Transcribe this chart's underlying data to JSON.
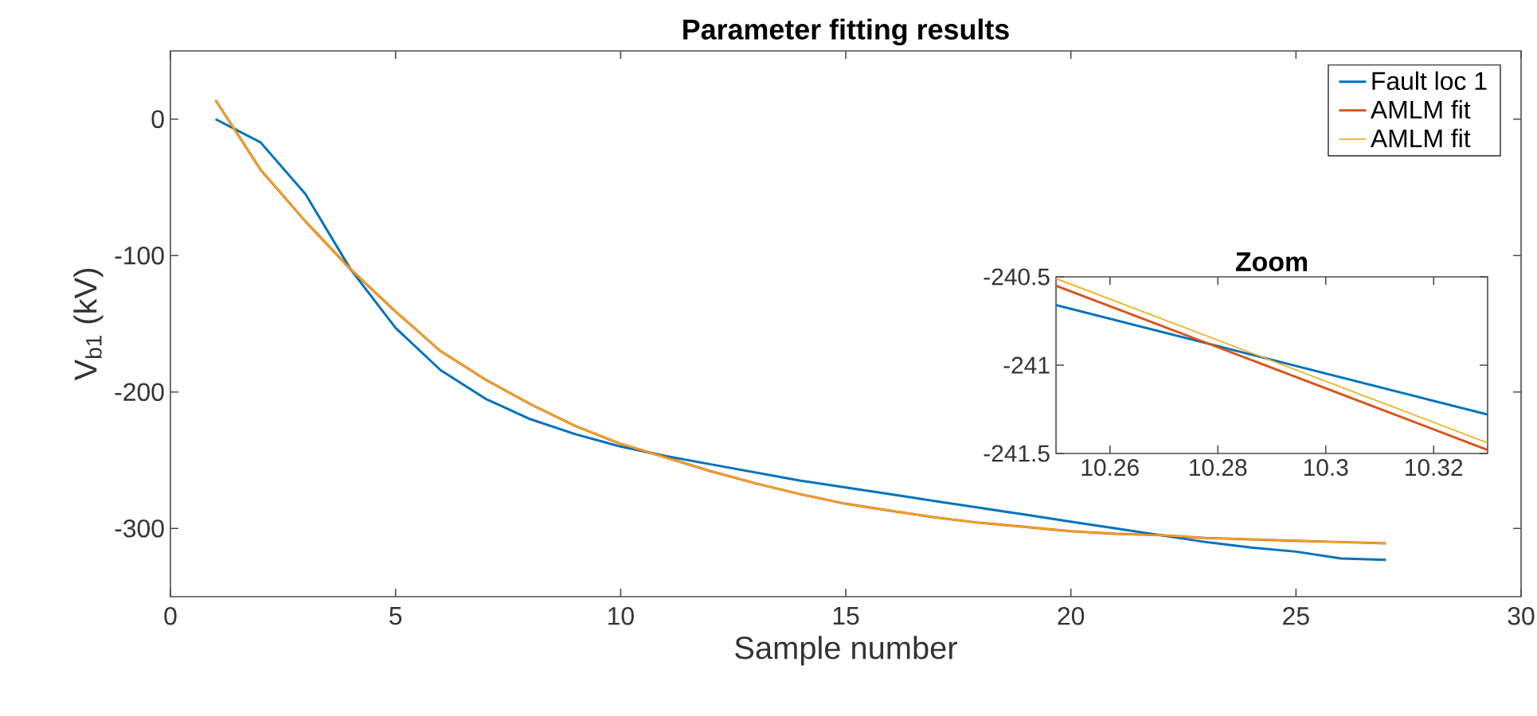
{
  "chart_data": [
    {
      "type": "line",
      "title": "Parameter fitting results",
      "xlabel": "Sample number",
      "ylabel": "V$_{b1}$ (kV)",
      "x": [
        1,
        2,
        3,
        4,
        5,
        6,
        7,
        8,
        9,
        10,
        11,
        12,
        13,
        14,
        15,
        16,
        17,
        18,
        19,
        20,
        21,
        22,
        23,
        24,
        25,
        26,
        27
      ],
      "xlim": [
        0,
        30
      ],
      "ylim": [
        -350,
        50
      ],
      "xticks": [
        0,
        5,
        10,
        15,
        20,
        25,
        30
      ],
      "yticks": [
        -300,
        -200,
        -100,
        0
      ],
      "legend": "top right",
      "series": [
        {
          "name": "Fault loc 1",
          "color": "#0072bd",
          "values": [
            0,
            -17,
            -55,
            -110,
            -153,
            -184,
            -205,
            -220,
            -231,
            -240,
            -247,
            -253,
            -259,
            -265,
            -270,
            -275,
            -280,
            -285,
            -290,
            -295,
            -300,
            -305,
            -310,
            -314,
            -317,
            -322,
            -323
          ]
        },
        {
          "name": "AMLM fit",
          "color": "#d95319",
          "values": [
            14,
            -37,
            -75,
            -110,
            -141,
            -170,
            -191,
            -209,
            -225,
            -238,
            -248,
            -258,
            -267,
            -275,
            -282,
            -287,
            -292,
            -296,
            -299,
            -302,
            -304,
            -305,
            -307,
            -308,
            -309,
            -310,
            -311
          ]
        },
        {
          "name": "AMLM fit",
          "color": "#edb120",
          "values": [
            14,
            -37,
            -75,
            -110,
            -141,
            -170,
            -191,
            -209,
            -225,
            -238,
            -248,
            -258,
            -267,
            -275,
            -282,
            -287,
            -292,
            -296,
            -299,
            -302,
            -304,
            -305,
            -307,
            -308,
            -309,
            -310,
            -311
          ]
        }
      ]
    },
    {
      "type": "line",
      "title": "Zoom",
      "x": [
        10.25,
        10.33
      ],
      "xlim": [
        10.25,
        10.33
      ],
      "ylim": [
        -241.5,
        -240.5
      ],
      "xticks": [
        10.26,
        10.28,
        10.3,
        10.32
      ],
      "yticks": [
        -241.5,
        -241,
        -240.5
      ],
      "series": [
        {
          "color": "#0072bd",
          "values": [
            -240.66,
            -241.28
          ]
        },
        {
          "color": "#d95319",
          "values": [
            -240.55,
            -241.48
          ]
        },
        {
          "color": "#edb120",
          "values": [
            -240.51,
            -241.44
          ]
        }
      ]
    }
  ]
}
